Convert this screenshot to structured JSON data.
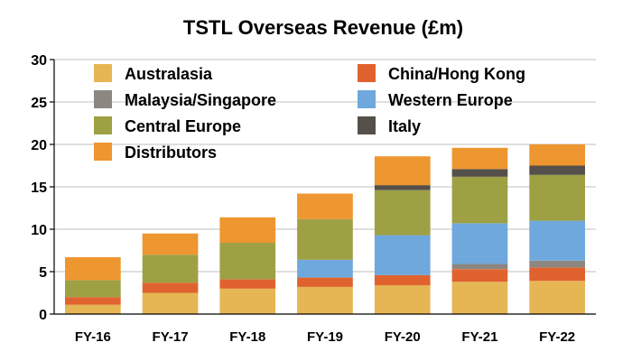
{
  "chart_data": {
    "type": "bar",
    "stacked": true,
    "title": "TSTL Overseas Revenue (£m)",
    "xlabel": "",
    "ylabel": "",
    "ylim": [
      0,
      30
    ],
    "yticks": [
      0,
      5,
      10,
      15,
      20,
      25,
      30
    ],
    "grid": true,
    "legend_position": "top-left, inside plot",
    "categories": [
      "FY-16",
      "FY-17",
      "FY-18",
      "FY-19",
      "FY-20",
      "FY-21",
      "FY-22"
    ],
    "series": [
      {
        "name": "Australasia",
        "color": "#E6B655",
        "values": [
          1.1,
          2.5,
          3.0,
          3.2,
          3.4,
          3.8,
          3.9
        ]
      },
      {
        "name": "China/Hong Kong",
        "color": "#E0632F",
        "values": [
          0.9,
          1.2,
          1.1,
          1.1,
          1.2,
          1.5,
          1.6
        ]
      },
      {
        "name": "Malaysia/Singapore",
        "color": "#8C8781",
        "values": [
          0,
          0,
          0,
          0,
          0,
          0.6,
          0.8
        ]
      },
      {
        "name": "Western Europe",
        "color": "#6FA8DC",
        "values": [
          0,
          0,
          0,
          2.1,
          4.7,
          4.8,
          4.7
        ]
      },
      {
        "name": "Central Europe",
        "color": "#9EA044",
        "values": [
          2.0,
          3.3,
          4.3,
          4.8,
          5.3,
          5.5,
          5.4
        ]
      },
      {
        "name": "Italy",
        "color": "#555049",
        "values": [
          0,
          0,
          0,
          0,
          0.6,
          0.9,
          1.1
        ]
      },
      {
        "name": "Distributors",
        "color": "#EE9630",
        "values": [
          2.7,
          2.5,
          3.0,
          3.0,
          3.4,
          2.5,
          2.5
        ]
      }
    ],
    "legend_columns": [
      [
        "Australasia",
        "Malaysia/Singapore",
        "Central Europe",
        "Distributors"
      ],
      [
        "China/Hong Kong",
        "Western Europe",
        "Italy"
      ]
    ]
  }
}
